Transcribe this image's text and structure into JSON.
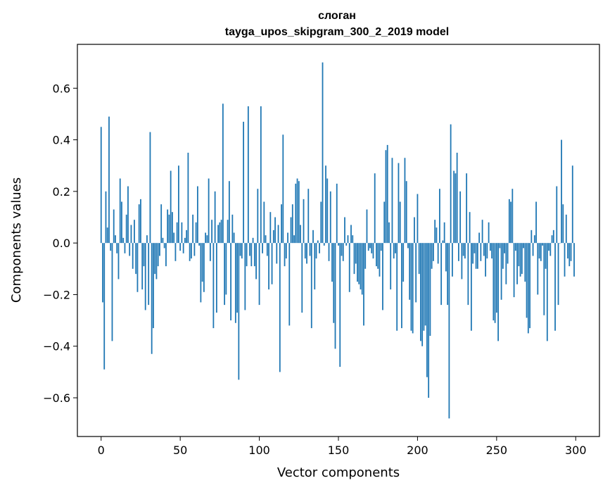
{
  "chart_data": {
    "type": "bar",
    "title": "слоган",
    "subtitle": "tayga_upos_skipgram_300_2_2019 model",
    "xlabel": "Vector components",
    "ylabel": "Components values",
    "xlim": [
      -15,
      315
    ],
    "ylim": [
      -0.75,
      0.77
    ],
    "xticks": [
      0,
      50,
      100,
      150,
      200,
      250,
      300
    ],
    "yticks": [
      -0.6,
      -0.4,
      -0.2,
      0.0,
      0.2,
      0.4,
      0.6
    ],
    "ytick_labels": [
      "−0.6",
      "−0.4",
      "−0.2",
      "0.0",
      "0.2",
      "0.4",
      "0.6"
    ],
    "grid": false,
    "bar_color": "#1f77b4",
    "x": [
      0,
      1,
      2,
      3,
      4,
      5,
      6,
      7,
      8,
      9,
      10,
      11,
      12,
      13,
      14,
      15,
      16,
      17,
      18,
      19,
      20,
      21,
      22,
      23,
      24,
      25,
      26,
      27,
      28,
      29,
      30,
      31,
      32,
      33,
      34,
      35,
      36,
      37,
      38,
      39,
      40,
      41,
      42,
      43,
      44,
      45,
      46,
      47,
      48,
      49,
      50,
      51,
      52,
      53,
      54,
      55,
      56,
      57,
      58,
      59,
      60,
      61,
      62,
      63,
      64,
      65,
      66,
      67,
      68,
      69,
      70,
      71,
      72,
      73,
      74,
      75,
      76,
      77,
      78,
      79,
      80,
      81,
      82,
      83,
      84,
      85,
      86,
      87,
      88,
      89,
      90,
      91,
      92,
      93,
      94,
      95,
      96,
      97,
      98,
      99,
      100,
      101,
      102,
      103,
      104,
      105,
      106,
      107,
      108,
      109,
      110,
      111,
      112,
      113,
      114,
      115,
      116,
      117,
      118,
      119,
      120,
      121,
      122,
      123,
      124,
      125,
      126,
      127,
      128,
      129,
      130,
      131,
      132,
      133,
      134,
      135,
      136,
      137,
      138,
      139,
      140,
      141,
      142,
      143,
      144,
      145,
      146,
      147,
      148,
      149,
      150,
      151,
      152,
      153,
      154,
      155,
      156,
      157,
      158,
      159,
      160,
      161,
      162,
      163,
      164,
      165,
      166,
      167,
      168,
      169,
      170,
      171,
      172,
      173,
      174,
      175,
      176,
      177,
      178,
      179,
      180,
      181,
      182,
      183,
      184,
      185,
      186,
      187,
      188,
      189,
      190,
      191,
      192,
      193,
      194,
      195,
      196,
      197,
      198,
      199,
      200,
      201,
      202,
      203,
      204,
      205,
      206,
      207,
      208,
      209,
      210,
      211,
      212,
      213,
      214,
      215,
      216,
      217,
      218,
      219,
      220,
      221,
      222,
      223,
      224,
      225,
      226,
      227,
      228,
      229,
      230,
      231,
      232,
      233,
      234,
      235,
      236,
      237,
      238,
      239,
      240,
      241,
      242,
      243,
      244,
      245,
      246,
      247,
      248,
      249,
      250,
      251,
      252,
      253,
      254,
      255,
      256,
      257,
      258,
      259,
      260,
      261,
      262,
      263,
      264,
      265,
      266,
      267,
      268,
      269,
      270,
      271,
      272,
      273,
      274,
      275,
      276,
      277,
      278,
      279,
      280,
      281,
      282,
      283,
      284,
      285,
      286,
      287,
      288,
      289,
      290,
      291,
      292,
      293,
      294,
      295,
      296,
      297,
      298,
      299
    ],
    "values": [
      0.45,
      -0.23,
      -0.49,
      0.2,
      0.06,
      0.49,
      -0.03,
      -0.38,
      0.13,
      0.03,
      -0.04,
      -0.14,
      0.25,
      0.16,
      0.02,
      -0.04,
      0.11,
      0.22,
      -0.05,
      0.07,
      -0.1,
      0.09,
      -0.12,
      -0.19,
      0.15,
      0.17,
      -0.18,
      -0.09,
      -0.26,
      0.03,
      -0.24,
      0.43,
      -0.43,
      -0.33,
      -0.12,
      -0.14,
      -0.09,
      -0.05,
      0.15,
      0.02,
      -0.02,
      -0.09,
      0.13,
      0.11,
      0.28,
      0.12,
      0.04,
      -0.07,
      0.08,
      0.3,
      -0.03,
      0.08,
      -0.04,
      0.02,
      0.05,
      0.35,
      -0.07,
      -0.06,
      0.11,
      -0.05,
      0.08,
      0.22,
      -0.01,
      -0.23,
      -0.15,
      -0.19,
      0.04,
      0.03,
      0.25,
      -0.07,
      0.09,
      -0.33,
      0.2,
      -0.27,
      0.07,
      0.08,
      0.09,
      0.54,
      -0.24,
      -0.2,
      0.09,
      0.24,
      -0.3,
      0.11,
      0.04,
      -0.31,
      -0.27,
      -0.53,
      -0.05,
      -0.06,
      0.47,
      -0.26,
      -0.09,
      0.53,
      -0.05,
      -0.09,
      0.02,
      -0.09,
      -0.14,
      0.21,
      -0.24,
      0.53,
      -0.04,
      0.16,
      0.03,
      -0.05,
      -0.18,
      0.12,
      -0.16,
      0.05,
      0.1,
      -0.08,
      0.07,
      -0.5,
      0.15,
      0.42,
      -0.09,
      -0.06,
      0.04,
      -0.32,
      0.1,
      0.15,
      0.03,
      0.23,
      0.25,
      0.24,
      0.07,
      -0.27,
      0.17,
      -0.06,
      -0.08,
      0.21,
      -0.05,
      -0.33,
      0.05,
      -0.18,
      -0.06,
      0.01,
      -0.04,
      0.16,
      0.7,
      -0.01,
      0.3,
      0.25,
      -0.07,
      0.2,
      -0.15,
      -0.31,
      -0.41,
      0.23,
      -0.01,
      -0.48,
      -0.05,
      -0.07,
      0.1,
      -0.01,
      0.03,
      -0.19,
      0.07,
      0.03,
      -0.12,
      -0.08,
      -0.15,
      -0.16,
      -0.18,
      -0.2,
      -0.32,
      -0.1,
      0.13,
      -0.03,
      -0.02,
      -0.04,
      -0.06,
      0.27,
      -0.09,
      -0.1,
      -0.13,
      -0.03,
      -0.26,
      0.16,
      0.36,
      0.38,
      0.08,
      -0.18,
      0.33,
      -0.06,
      -0.04,
      -0.34,
      0.31,
      0.16,
      -0.33,
      -0.15,
      0.33,
      0.24,
      -0.02,
      -0.22,
      -0.34,
      -0.35,
      0.1,
      -0.23,
      0.19,
      -0.12,
      -0.38,
      -0.4,
      -0.34,
      -0.32,
      -0.52,
      -0.6,
      -0.36,
      -0.1,
      -0.07,
      0.09,
      0.06,
      -0.08,
      0.21,
      -0.24,
      0.01,
      0.08,
      -0.11,
      -0.24,
      -0.68,
      0.46,
      -0.13,
      0.28,
      0.27,
      0.35,
      -0.07,
      0.2,
      -0.14,
      -0.05,
      -0.06,
      0.27,
      -0.24,
      0.12,
      -0.34,
      -0.08,
      -0.04,
      -0.1,
      -0.1,
      0.04,
      -0.07,
      0.09,
      -0.05,
      -0.13,
      -0.06,
      0.08,
      -0.03,
      -0.06,
      -0.3,
      -0.31,
      -0.27,
      -0.38,
      -0.02,
      -0.22,
      -0.1,
      -0.04,
      -0.16,
      -0.08,
      0.17,
      0.16,
      0.21,
      -0.21,
      -0.03,
      -0.16,
      -0.09,
      -0.13,
      -0.12,
      -0.02,
      -0.15,
      -0.29,
      -0.35,
      -0.33,
      0.05,
      -0.05,
      0.03,
      0.16,
      -0.2,
      -0.06,
      -0.07,
      -0.01,
      -0.28,
      -0.1,
      -0.38,
      -0.03,
      -0.05,
      0.03,
      0.05,
      -0.34,
      0.22,
      -0.24,
      0.0,
      0.4,
      0.15,
      -0.13,
      0.11,
      -0.06,
      -0.09,
      -0.07,
      0.3,
      -0.13
    ]
  }
}
